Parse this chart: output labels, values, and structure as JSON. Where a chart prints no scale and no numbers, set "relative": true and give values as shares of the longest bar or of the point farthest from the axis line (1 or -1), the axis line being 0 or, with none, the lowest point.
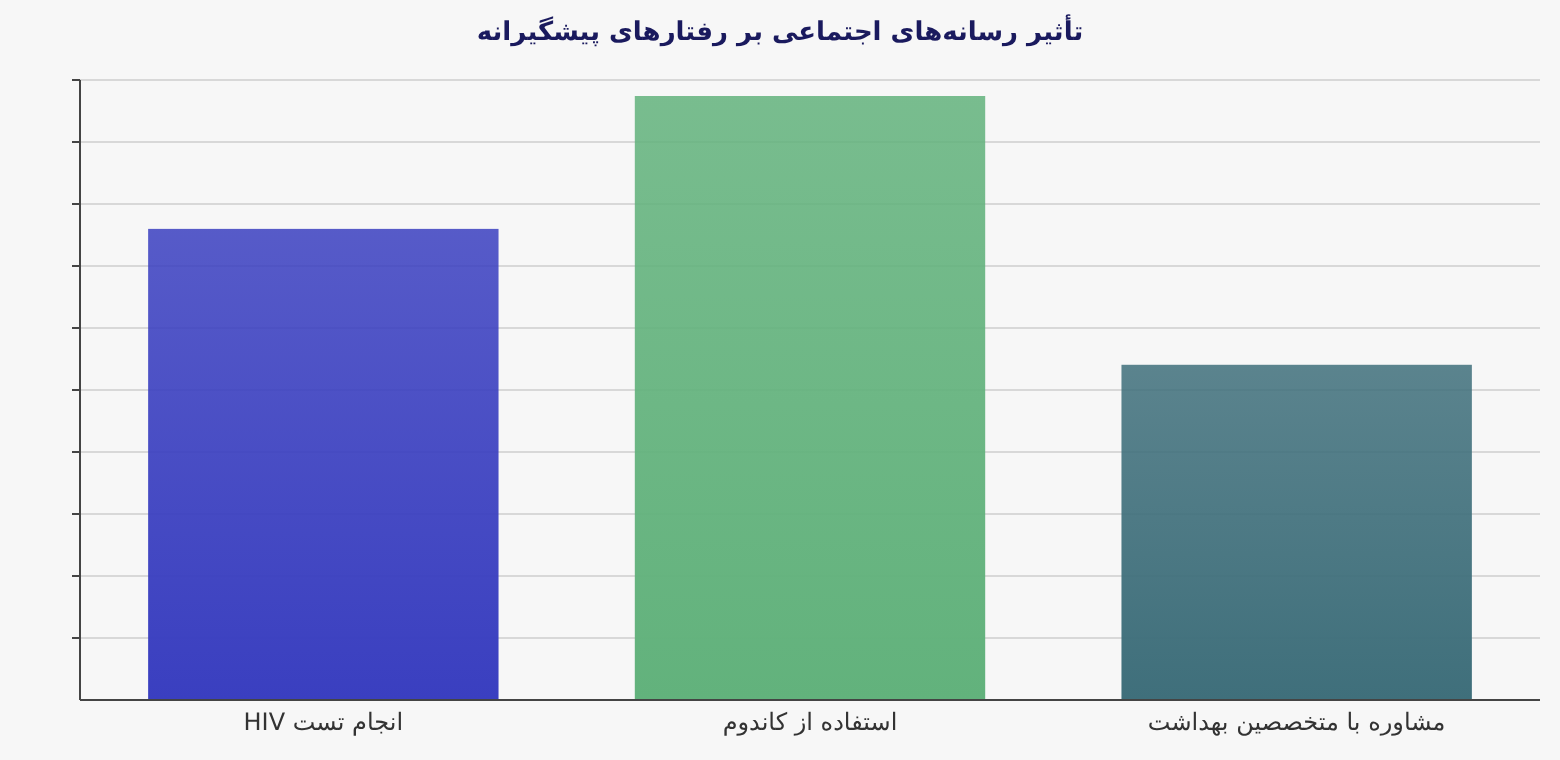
{
  "chart_data": {
    "type": "bar",
    "title": "تأثیر رسانه‌های اجتماعی بر رفتارهای پیشگیرانه",
    "categories": [
      "انجام تست HIV",
      "استفاده از کاندوم",
      "مشاوره با متخصصین بهداشت"
    ],
    "values": [
      0.78,
      1,
      0.555
    ],
    "colors": [
      "#3a3fc0",
      "#62b27c",
      "#3f6f7b"
    ],
    "relative": true,
    "grid": "y",
    "tick_labels": "x"
  }
}
